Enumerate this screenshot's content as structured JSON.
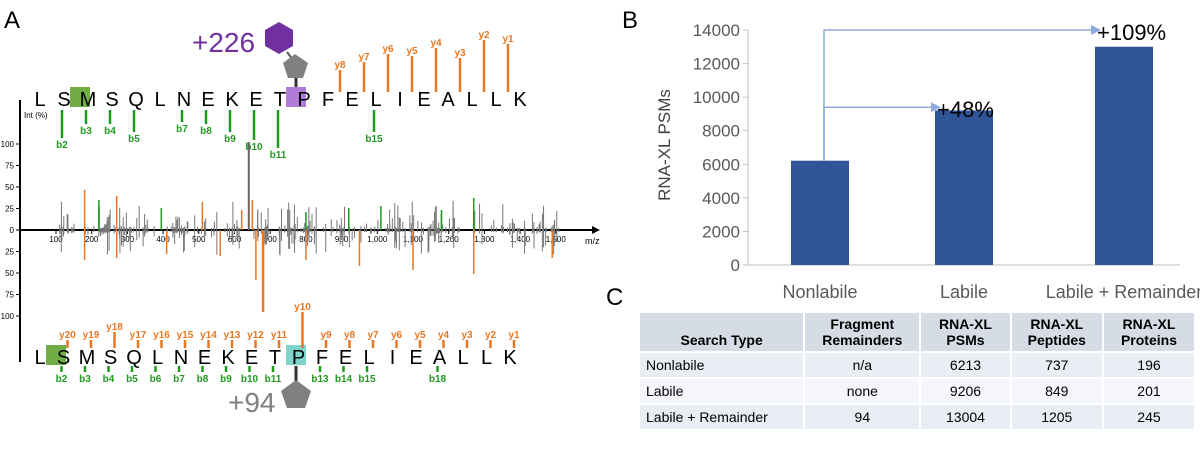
{
  "panel_labels": {
    "a": "A",
    "b": "B",
    "c": "C"
  },
  "panel_a": {
    "int_label": "Int (%)",
    "mz_label": "m/z",
    "y_ticks": [
      "100",
      "75",
      "50",
      "25",
      "0",
      "25",
      "50",
      "75",
      "100"
    ],
    "x_ticks": [
      "100",
      "200",
      "300",
      "400",
      "500",
      "600",
      "700",
      "800",
      "900",
      "1,000",
      "1,100",
      "1,200",
      "1,300",
      "1,400",
      "1,500"
    ],
    "top_sequence": [
      "L",
      "S",
      "M",
      "S",
      "Q",
      "L",
      "N",
      "E",
      "K",
      "E",
      "T",
      "P",
      "F",
      "E",
      "L",
      "I",
      "E",
      "A",
      "L",
      "L",
      "K"
    ],
    "bottom_sequence": [
      "L",
      "S",
      "M",
      "S",
      "Q",
      "L",
      "N",
      "E",
      "K",
      "E",
      "T",
      "P",
      "F",
      "E",
      "L",
      "I",
      "E",
      "A",
      "L",
      "L",
      "K"
    ],
    "top_mass_label": "+226",
    "bottom_mass_label": "+94",
    "top_y_ions": [
      "y8",
      "y7",
      "y6",
      "y5",
      "y4",
      "y3",
      "y2",
      "y1"
    ],
    "top_b_ions": [
      "b2",
      "b3",
      "b4",
      "b5",
      "b7",
      "b8",
      "b9",
      "b10",
      "b11",
      "b15"
    ],
    "bottom_y_ions": [
      "y20",
      "y19",
      "y18",
      "y17",
      "y16",
      "y15",
      "y14",
      "y13",
      "y12",
      "y11",
      "y10",
      "y9",
      "y8",
      "y7",
      "y6",
      "y5",
      "y4",
      "y3",
      "y2",
      "y1"
    ],
    "bottom_b_ions": [
      "b2",
      "b3",
      "b4",
      "b5",
      "b6",
      "b7",
      "b8",
      "b9",
      "b10",
      "b11",
      "b13",
      "b14",
      "b15",
      "b18"
    ]
  },
  "chart_data": {
    "type": "bar",
    "title": "",
    "xlabel": "",
    "ylabel": "RNA-XL PSMs",
    "categories": [
      "Nonlabile",
      "Labile",
      "Labile + Remainder"
    ],
    "values": [
      6213,
      9206,
      13004
    ],
    "ylim": [
      0,
      14000
    ],
    "y_ticks": [
      "0",
      "2000",
      "4000",
      "6000",
      "8000",
      "10000",
      "12000",
      "14000"
    ],
    "annotations": [
      "+48%",
      "+109%"
    ],
    "bar_color": "#2f5597",
    "arrow_color": "#8faadc"
  },
  "table": {
    "headers": [
      "Search Type",
      "Fragment Remainders",
      "RNA-XL PSMs",
      "RNA-XL Peptides",
      "RNA-XL Proteins"
    ],
    "rows": [
      [
        "Nonlabile",
        "n/a",
        "6213",
        "737",
        "196"
      ],
      [
        "Labile",
        "none",
        "9206",
        "849",
        "201"
      ],
      [
        "Labile + Remainder",
        "94",
        "13004",
        "1205",
        "245"
      ]
    ]
  },
  "colors": {
    "y_ion": "#e87722",
    "b_ion": "#1f9a1f",
    "purple": "#7030a0",
    "gray": "#808080",
    "m_box": "#70ad47",
    "f_box_top": "#b07cd8",
    "f_box_bottom": "#7fd5cc"
  }
}
